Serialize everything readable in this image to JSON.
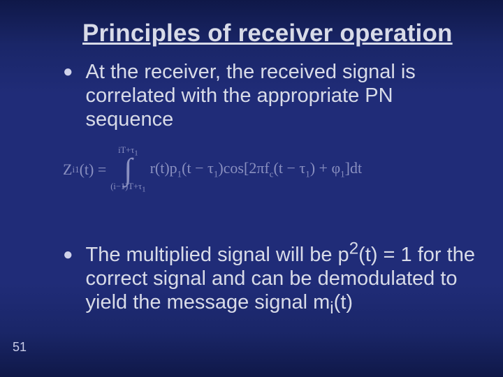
{
  "colors": {
    "background_top": "#0f1848",
    "background_mid": "#202c78",
    "title_color": "#d8dbe8",
    "body_text_color": "#d8dbe8",
    "equation_color": "#8a90c0",
    "page_num_color": "#c9cce8"
  },
  "typography": {
    "title_fontsize": 35,
    "body_fontsize": 29,
    "eq_fontsize": 22,
    "page_num_fontsize": 18,
    "title_font": "Arial",
    "eq_font": "Times New Roman"
  },
  "slide": {
    "title": "Principles of receiver operation",
    "page_number": "51",
    "bullets": [
      {
        "text_html": "At the receiver, the received signal is correlated with the appropriate PN sequence"
      },
      {
        "text_html": "The multiplied signal will be p<sup>2</sup>(t) = 1 for the correct signal and can be demodulated to yield the message signal m<sub>i</sub>(t)"
      }
    ],
    "equation": {
      "lhs_html": "Z<span class=\"sub\">i</span><span class=\"sup\">1</span>(t) =",
      "upper_limit_html": "iT+τ<span class=\"subsm\">1</span>",
      "lower_limit_html": "(i−1)T+τ<span class=\"subsm\">1</span>",
      "integrand_html": "r(t)p<span class=\"sub\">1</span>(t − τ<span class=\"sub\">1</span>)cos[2πf<span class=\"sub\">c</span>(t − τ<span class=\"sub\">1</span>) + φ<span class=\"sub\">1</span>]dt"
    }
  }
}
